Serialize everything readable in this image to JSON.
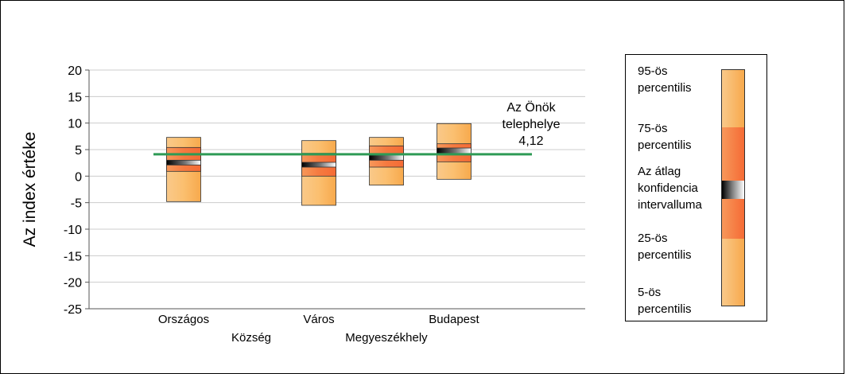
{
  "chart_data": {
    "type": "boxplot",
    "ylabel": "Az index értéke",
    "ylim": [
      -25,
      20
    ],
    "yticks": [
      20,
      15,
      10,
      5,
      0,
      -5,
      -10,
      -15,
      -20,
      -25
    ],
    "grid": true,
    "categories": [
      {
        "label": "Országos",
        "row": 1
      },
      {
        "label": "Község",
        "row": 2
      },
      {
        "label": "Város",
        "row": 1
      },
      {
        "label": "Megyeszékhely",
        "row": 2
      },
      {
        "label": "Budapest",
        "row": 1
      }
    ],
    "boxes": [
      {
        "category": "Országos",
        "p5": -4.8,
        "p25": 0.9,
        "ci_low": 2.1,
        "ci_high": 3.0,
        "p75": 5.4,
        "p95": 7.3
      },
      {
        "category": "Város",
        "p5": -5.5,
        "p25": 0.0,
        "ci_low": 1.7,
        "ci_high": 2.6,
        "p75": 4.3,
        "p95": 6.7
      },
      {
        "category": "Megyeszékhely",
        "p5": -1.7,
        "p25": 1.7,
        "ci_low": 3.0,
        "ci_high": 4.1,
        "p75": 5.7,
        "p95": 7.3
      },
      {
        "category": "Budapest",
        "p5": -0.6,
        "p25": 2.7,
        "ci_low": 4.1,
        "ci_high": 5.3,
        "p75": 6.1,
        "p95": 9.9
      }
    ],
    "reference_line": {
      "value": 4.12,
      "label_lines": [
        "Az Önök",
        "telephelye",
        "4,12"
      ],
      "color": "#2e9a55"
    },
    "colors": {
      "outer": "#f9b060",
      "inner": "#f57a40",
      "ci_dark": "#000000",
      "ci_light": "#ffffff",
      "grid": "#cccccc",
      "axis": "#555555"
    }
  },
  "legend": {
    "items": [
      {
        "lines": [
          "95-ös",
          "percentilis"
        ]
      },
      {
        "lines": [
          "75-ös",
          "percentilis"
        ]
      },
      {
        "lines": [
          "Az átlag",
          "konfidencia",
          "intervalluma"
        ]
      },
      {
        "lines": [
          "25-ös",
          "percentilis"
        ]
      },
      {
        "lines": [
          "5-ös",
          "percentilis"
        ]
      }
    ]
  }
}
